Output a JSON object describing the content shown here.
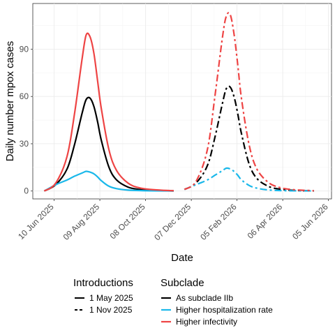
{
  "chart_data": {
    "type": "line",
    "xlabel": "Date",
    "ylabel": "Daily number mpox cases",
    "x_ticks": [
      "10 Jun 2025",
      "09 Aug 2025",
      "08 Oct 2025",
      "07 Dec 2025",
      "05 Feb 2026",
      "06 Apr 2026",
      "05 Jun 2026"
    ],
    "y_ticks": [
      "0",
      "30",
      "60",
      "90"
    ],
    "xlim": [
      "2025-05-13",
      "2026-06-09"
    ],
    "ylim": [
      -5,
      119
    ],
    "grid": true,
    "legend_position": "bottom",
    "legend": {
      "introductions": {
        "title": "Introductions",
        "entries": [
          {
            "label": "1 May 2025",
            "dash": "solid"
          },
          {
            "label": "1 Nov 2025",
            "dash": "dashed"
          }
        ]
      },
      "subclade": {
        "title": "Subclade",
        "entries": [
          {
            "label": "As subclade IIb",
            "color": "#000000"
          },
          {
            "label": "Higher hospitalization rate",
            "color": "#1ab8ea"
          },
          {
            "label": "Higher infectivity",
            "color": "#ee4444"
          }
        ]
      }
    },
    "series": [
      {
        "introduction": "1 May 2025",
        "subclade": "As subclade IIb",
        "color": "#000000",
        "dash": "solid",
        "x": [
          "2025-05-28",
          "2025-06-12",
          "2025-06-27",
          "2025-07-07",
          "2025-07-17",
          "2025-07-22",
          "2025-07-27",
          "2025-08-01",
          "2025-08-06",
          "2025-08-11",
          "2025-08-21",
          "2025-08-31",
          "2025-09-15",
          "2025-09-30",
          "2025-10-15",
          "2025-10-30",
          "2025-11-14"
        ],
        "y": [
          0,
          4,
          14,
          30,
          50,
          58,
          59,
          54,
          44,
          32,
          15,
          7,
          2.5,
          1,
          0.4,
          0.2,
          0.1
        ]
      },
      {
        "introduction": "1 May 2025",
        "subclade": "Higher hospitalization rate",
        "color": "#1ab8ea",
        "dash": "solid",
        "x": [
          "2025-05-28",
          "2025-06-12",
          "2025-06-27",
          "2025-07-07",
          "2025-07-17",
          "2025-07-22",
          "2025-07-27",
          "2025-08-01",
          "2025-08-06",
          "2025-08-11",
          "2025-08-21",
          "2025-08-31",
          "2025-09-15",
          "2025-09-30",
          "2025-10-15",
          "2025-10-30",
          "2025-11-14"
        ],
        "y": [
          0,
          4,
          7,
          9.5,
          11.5,
          12.5,
          12,
          11,
          9,
          6.5,
          3,
          1.5,
          0.6,
          0.3,
          0.15,
          0.1,
          0.05
        ]
      },
      {
        "introduction": "1 May 2025",
        "subclade": "Higher infectivity",
        "color": "#ee4444",
        "dash": "solid",
        "x": [
          "2025-05-28",
          "2025-06-12",
          "2025-06-27",
          "2025-07-07",
          "2025-07-17",
          "2025-07-22",
          "2025-07-27",
          "2025-08-01",
          "2025-08-06",
          "2025-08-11",
          "2025-08-21",
          "2025-08-31",
          "2025-09-15",
          "2025-09-30",
          "2025-10-15",
          "2025-10-30",
          "2025-11-14"
        ],
        "y": [
          0,
          5,
          22,
          50,
          85,
          99,
          98,
          88,
          70,
          52,
          26,
          13,
          5,
          2,
          1,
          0.5,
          0.2
        ]
      },
      {
        "introduction": "1 Nov 2025",
        "subclade": "As subclade IIb",
        "color": "#000000",
        "dash": "dashed",
        "x": [
          "2025-11-28",
          "2025-12-13",
          "2025-12-28",
          "2026-01-07",
          "2026-01-17",
          "2026-01-22",
          "2026-01-27",
          "2026-02-01",
          "2026-02-06",
          "2026-02-11",
          "2026-02-21",
          "2026-03-03",
          "2026-03-18",
          "2026-04-02",
          "2026-04-17",
          "2026-05-02",
          "2026-05-17"
        ],
        "y": [
          1,
          5,
          16,
          34,
          56,
          65,
          66,
          60,
          49,
          36,
          17,
          8,
          3,
          1.2,
          0.5,
          0.2,
          0.1
        ]
      },
      {
        "introduction": "1 Nov 2025",
        "subclade": "Higher hospitalization rate",
        "color": "#1ab8ea",
        "dash": "dashed",
        "x": [
          "2025-11-28",
          "2025-12-13",
          "2025-12-28",
          "2026-01-07",
          "2026-01-17",
          "2026-01-22",
          "2026-01-27",
          "2026-02-01",
          "2026-02-06",
          "2026-02-11",
          "2026-02-21",
          "2026-03-03",
          "2026-03-18",
          "2026-04-02",
          "2026-04-17",
          "2026-05-02",
          "2026-05-17"
        ],
        "y": [
          1,
          4,
          7,
          10,
          13,
          14.5,
          14,
          12.5,
          10,
          7,
          3.5,
          1.8,
          0.7,
          0.3,
          0.15,
          0.1,
          0.05
        ]
      },
      {
        "introduction": "1 Nov 2025",
        "subclade": "Higher infectivity",
        "color": "#ee4444",
        "dash": "dashed",
        "x": [
          "2025-11-28",
          "2025-12-13",
          "2025-12-28",
          "2026-01-07",
          "2026-01-17",
          "2026-01-22",
          "2026-01-27",
          "2026-02-01",
          "2026-02-06",
          "2026-02-11",
          "2026-02-21",
          "2026-03-03",
          "2026-03-18",
          "2026-04-02",
          "2026-04-17",
          "2026-05-02",
          "2026-05-17"
        ],
        "y": [
          1,
          6,
          26,
          60,
          98,
          111,
          112,
          100,
          80,
          58,
          29,
          14,
          5.5,
          2.2,
          1,
          0.5,
          0.2
        ]
      }
    ]
  }
}
